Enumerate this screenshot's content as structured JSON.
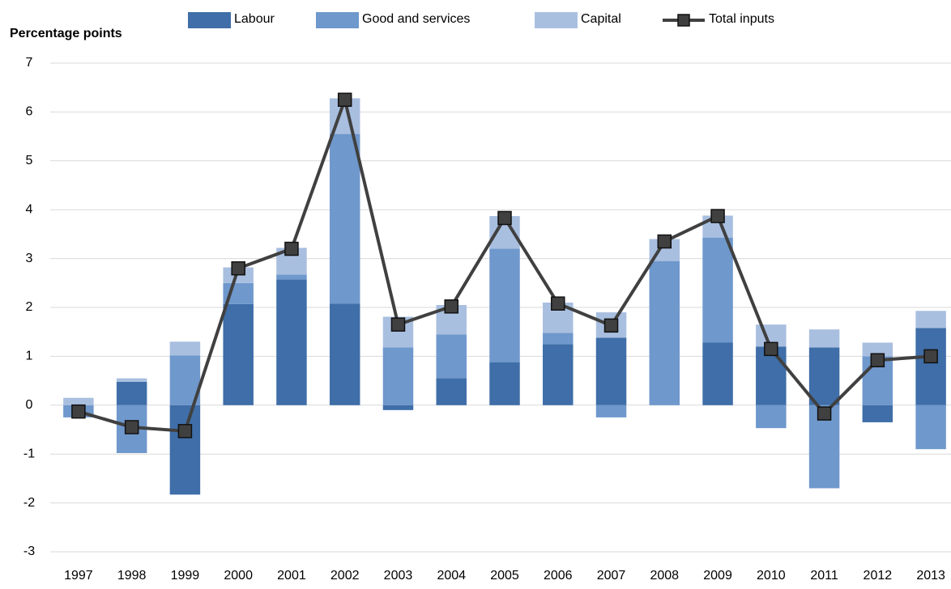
{
  "chart_data": {
    "type": "stacked-bar-line",
    "y_label": "Percentage points",
    "categories": [
      "1997",
      "1998",
      "1999",
      "2000",
      "2001",
      "2002",
      "2003",
      "2004",
      "2005",
      "2006",
      "2007",
      "2008",
      "2009",
      "2010",
      "2011",
      "2012",
      "2013"
    ],
    "series": [
      {
        "name": "Labour",
        "color": "#3f6ea8",
        "values": [
          0,
          0.48,
          -1.83,
          2.07,
          2.57,
          2.08,
          -0.1,
          0.55,
          0.88,
          1.25,
          1.38,
          0,
          1.28,
          1.2,
          1.18,
          -0.35,
          1.58
        ]
      },
      {
        "name": "Good and services",
        "color": "#6f98cc",
        "values": [
          -0.25,
          -0.98,
          1.02,
          0.43,
          0.1,
          3.47,
          1.18,
          0.9,
          2.32,
          0.23,
          -0.25,
          2.95,
          2.15,
          -0.47,
          -1.7,
          1.0,
          -0.9
        ]
      },
      {
        "name": "Capital",
        "color": "#a9bfe0",
        "values": [
          0.15,
          0.07,
          0.28,
          0.32,
          0.55,
          0.73,
          0.63,
          0.6,
          0.67,
          0.62,
          0.52,
          0.45,
          0.45,
          0.45,
          0.37,
          0.28,
          0.35
        ]
      },
      {
        "name": "Total inputs",
        "type": "line",
        "color": "#404040",
        "values": [
          -0.13,
          -0.45,
          -0.53,
          2.8,
          3.2,
          6.25,
          1.65,
          2.02,
          3.83,
          2.08,
          1.63,
          3.35,
          3.87,
          1.15,
          -0.17,
          0.92,
          1.0
        ]
      }
    ],
    "ylim": [
      -3,
      7
    ],
    "yticks": [
      -3,
      -2,
      -1,
      0,
      1,
      2,
      3,
      4,
      5,
      6,
      7
    ],
    "grid": true,
    "legend": "top"
  }
}
